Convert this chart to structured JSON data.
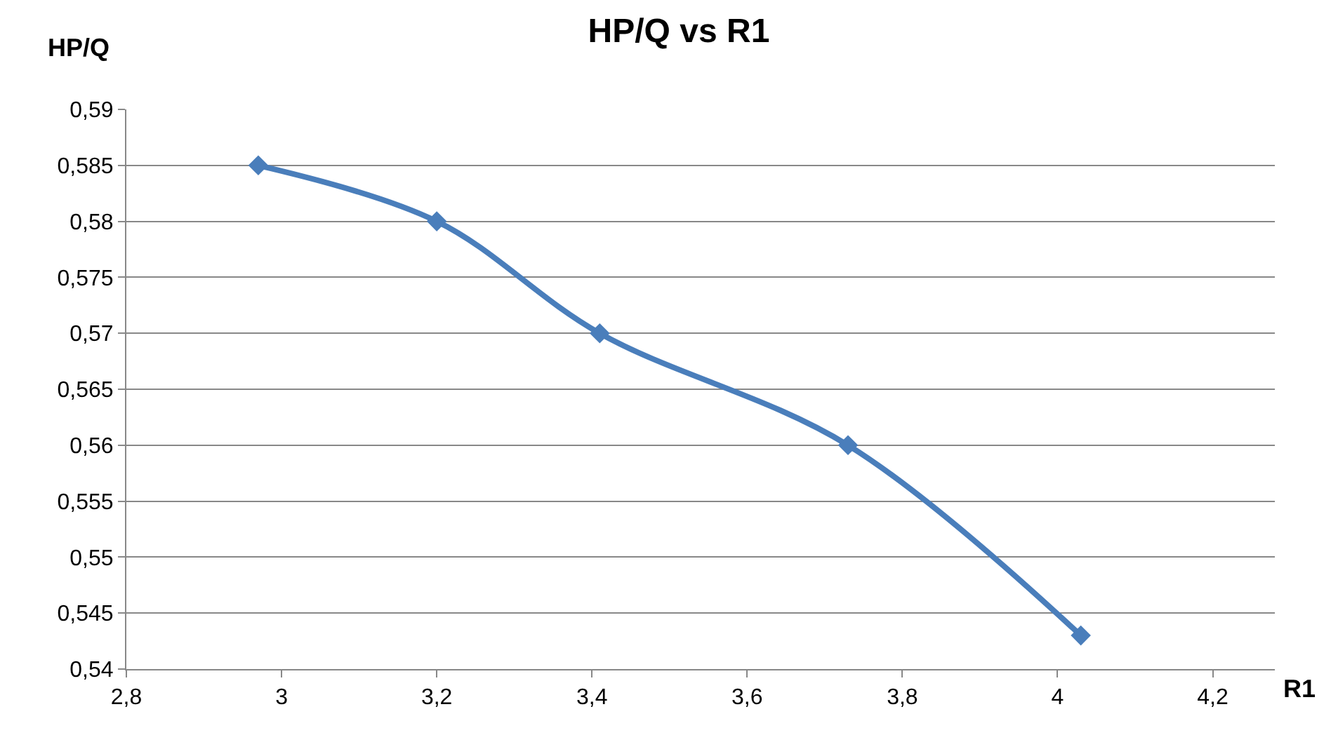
{
  "chart_data": {
    "type": "line",
    "title": "HP/Q vs R1",
    "xlabel": "R1",
    "ylabel": "HP/Q",
    "x": [
      2.97,
      3.2,
      3.41,
      3.73,
      4.03
    ],
    "series": [
      {
        "color": "#4a7ebb",
        "values": [
          0.585,
          0.58,
          0.57,
          0.56,
          0.543
        ]
      }
    ],
    "xlim": [
      2.8,
      4.28
    ],
    "xticks": [
      {
        "value": 2.8,
        "label": "2,8"
      },
      {
        "value": 3,
        "label": "3"
      },
      {
        "value": 3.2,
        "label": "3,2"
      },
      {
        "value": 3.4,
        "label": "3,4"
      },
      {
        "value": 3.6,
        "label": "3,6"
      },
      {
        "value": 3.8,
        "label": "3,8"
      },
      {
        "value": 4,
        "label": "4"
      },
      {
        "value": 4.2,
        "label": "4,2"
      }
    ],
    "ylim": [
      0.54,
      0.59
    ],
    "yticks": [
      {
        "value": 0.54,
        "label": "0,54"
      },
      {
        "value": 0.545,
        "label": "0,545"
      },
      {
        "value": 0.55,
        "label": "0,55"
      },
      {
        "value": 0.555,
        "label": "0,555"
      },
      {
        "value": 0.56,
        "label": "0,56"
      },
      {
        "value": 0.565,
        "label": "0,565"
      },
      {
        "value": 0.57,
        "label": "0,57"
      },
      {
        "value": 0.575,
        "label": "0,575"
      },
      {
        "value": 0.58,
        "label": "0,58"
      },
      {
        "value": 0.585,
        "label": "0,585"
      },
      {
        "value": 0.59,
        "label": "0,59"
      }
    ],
    "grid": "y",
    "marker": "diamond",
    "line_style": "solid"
  }
}
